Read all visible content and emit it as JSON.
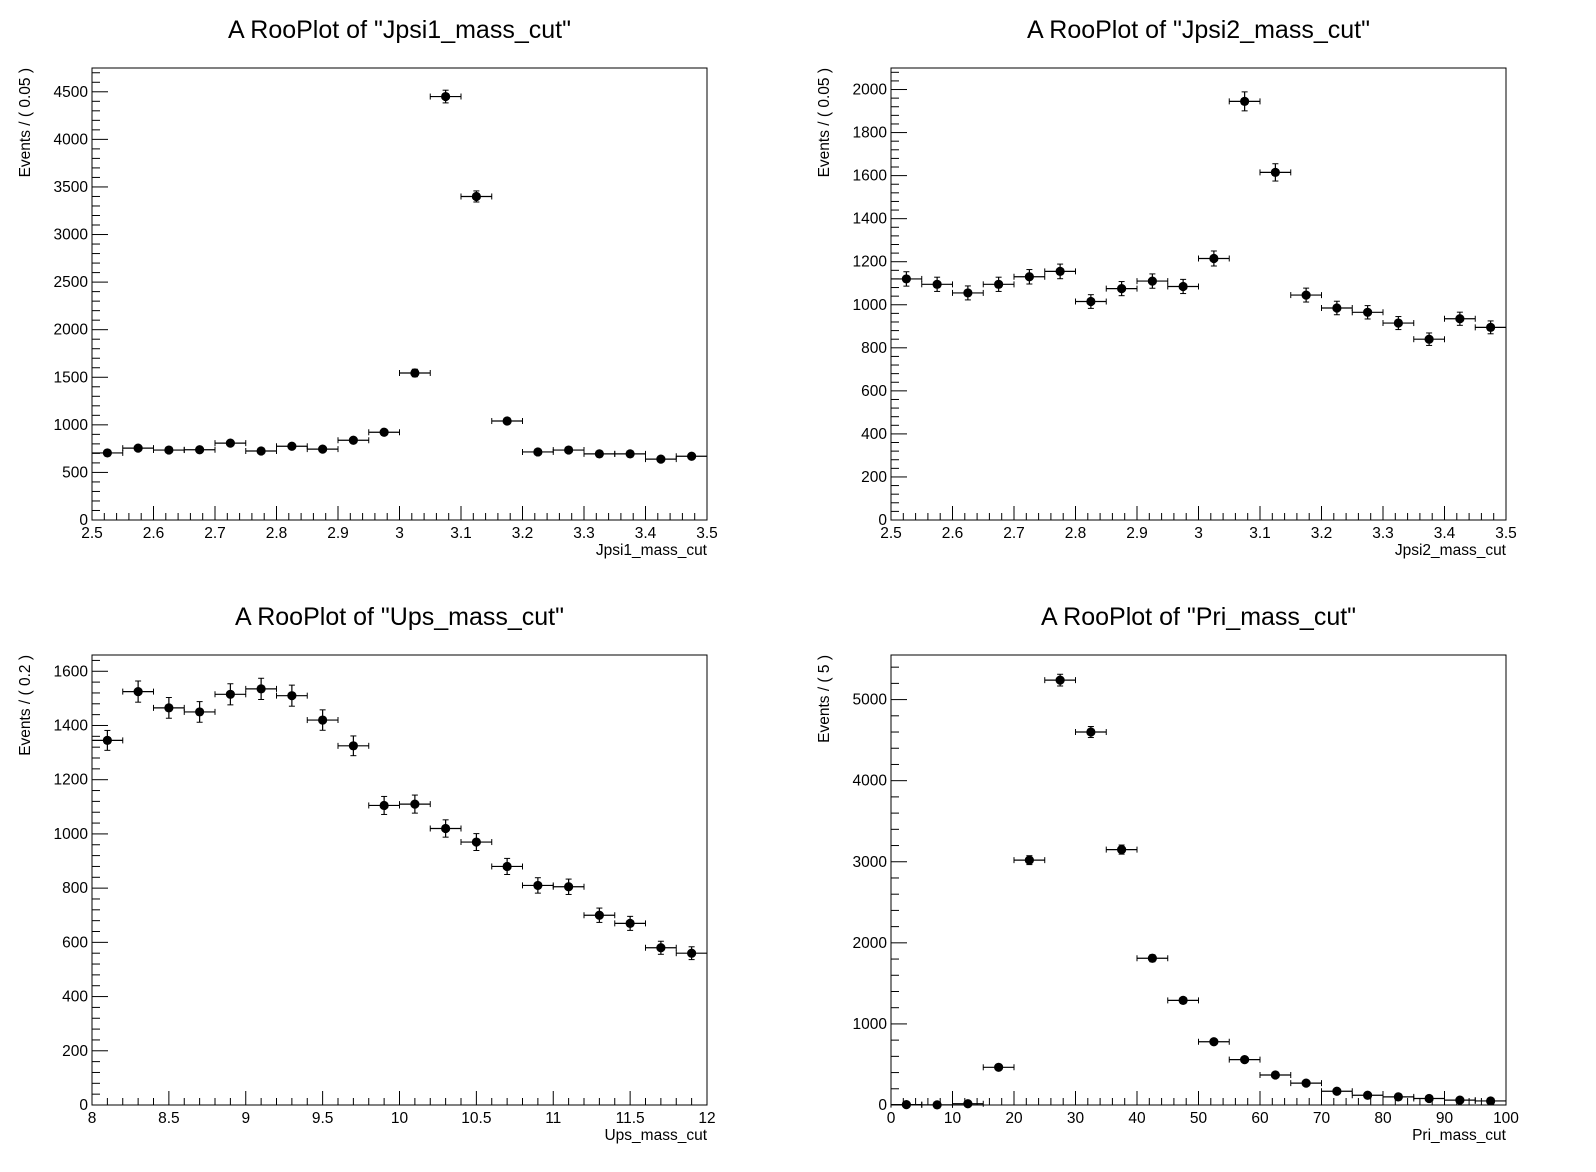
{
  "chart_data": [
    {
      "type": "scatter",
      "title": "A RooPlot of \"Jpsi1_mass_cut\"",
      "xlabel": "Jpsi1_mass_cut",
      "ylabel": "Events / ( 0.05 )",
      "xlim": [
        2.5,
        3.5
      ],
      "ylim": [
        0,
        4750
      ],
      "xticks": [
        2.5,
        2.6,
        2.7,
        2.8,
        2.9,
        3,
        3.1,
        3.2,
        3.3,
        3.4,
        3.5
      ],
      "xtick_labels": [
        "2.5",
        "2.6",
        "2.7",
        "2.8",
        "2.9",
        "3",
        "3.1",
        "3.2",
        "3.3",
        "3.4",
        "3.5"
      ],
      "yticks": [
        0,
        500,
        1000,
        1500,
        2000,
        2500,
        3000,
        3500,
        4000,
        4500
      ],
      "ytick_labels": [
        "0",
        "500",
        "1000",
        "1500",
        "2000",
        "2500",
        "3000",
        "3500",
        "4000",
        "4500"
      ],
      "bin_width": 0.05,
      "grid": false,
      "series": [
        {
          "x": [
            2.525,
            2.575,
            2.625,
            2.675,
            2.725,
            2.775,
            2.825,
            2.875,
            2.925,
            2.975,
            3.025,
            3.075,
            3.125,
            3.175,
            3.225,
            3.275,
            3.325,
            3.375,
            3.425,
            3.475
          ],
          "y": [
            705,
            755,
            735,
            738,
            808,
            725,
            775,
            745,
            838,
            922,
            1545,
            4450,
            3400,
            1040,
            715,
            735,
            695,
            695,
            640,
            670
          ]
        }
      ]
    },
    {
      "type": "scatter",
      "title": "A RooPlot of \"Jpsi2_mass_cut\"",
      "xlabel": "Jpsi2_mass_cut",
      "ylabel": "Events / ( 0.05 )",
      "xlim": [
        2.5,
        3.5
      ],
      "ylim": [
        0,
        2100
      ],
      "xticks": [
        2.5,
        2.6,
        2.7,
        2.8,
        2.9,
        3,
        3.1,
        3.2,
        3.3,
        3.4,
        3.5
      ],
      "xtick_labels": [
        "2.5",
        "2.6",
        "2.7",
        "2.8",
        "2.9",
        "3",
        "3.1",
        "3.2",
        "3.3",
        "3.4",
        "3.5"
      ],
      "yticks": [
        0,
        200,
        400,
        600,
        800,
        1000,
        1200,
        1400,
        1600,
        1800,
        2000
      ],
      "ytick_labels": [
        "0",
        "200",
        "400",
        "600",
        "800",
        "1000",
        "1200",
        "1400",
        "1600",
        "1800",
        "2000"
      ],
      "bin_width": 0.05,
      "grid": false,
      "series": [
        {
          "x": [
            2.525,
            2.575,
            2.625,
            2.675,
            2.725,
            2.775,
            2.825,
            2.875,
            2.925,
            2.975,
            3.025,
            3.075,
            3.125,
            3.175,
            3.225,
            3.275,
            3.325,
            3.375,
            3.425,
            3.475
          ],
          "y": [
            1120,
            1095,
            1055,
            1095,
            1130,
            1155,
            1015,
            1075,
            1110,
            1085,
            1215,
            1945,
            1615,
            1045,
            985,
            965,
            915,
            840,
            935,
            895
          ]
        }
      ]
    },
    {
      "type": "scatter",
      "title": "A RooPlot of \"Ups_mass_cut\"",
      "xlabel": "Ups_mass_cut",
      "ylabel": "Events / ( 0.2 )",
      "xlim": [
        8,
        12
      ],
      "ylim": [
        0,
        1660
      ],
      "xticks": [
        8,
        8.5,
        9,
        9.5,
        10,
        10.5,
        11,
        11.5,
        12
      ],
      "xtick_labels": [
        "8",
        "8.5",
        "9",
        "9.5",
        "10",
        "10.5",
        "11",
        "11.5",
        "12"
      ],
      "yticks": [
        0,
        200,
        400,
        600,
        800,
        1000,
        1200,
        1400,
        1600
      ],
      "ytick_labels": [
        "0",
        "200",
        "400",
        "600",
        "800",
        "1000",
        "1200",
        "1400",
        "1600"
      ],
      "bin_width": 0.2,
      "grid": false,
      "series": [
        {
          "x": [
            8.1,
            8.3,
            8.5,
            8.7,
            8.9,
            9.1,
            9.3,
            9.5,
            9.7,
            9.9,
            10.1,
            10.3,
            10.5,
            10.7,
            10.9,
            11.1,
            11.3,
            11.5,
            11.7,
            11.9
          ],
          "y": [
            1345,
            1525,
            1465,
            1450,
            1515,
            1535,
            1510,
            1420,
            1325,
            1105,
            1110,
            1020,
            970,
            880,
            810,
            805,
            700,
            670,
            580,
            560
          ]
        }
      ]
    },
    {
      "type": "scatter",
      "title": "A RooPlot of \"Pri_mass_cut\"",
      "xlabel": "Pri_mass_cut",
      "ylabel": "Events / ( 5 )",
      "xlim": [
        0,
        100
      ],
      "ylim": [
        0,
        5550
      ],
      "xticks": [
        0,
        10,
        20,
        30,
        40,
        50,
        60,
        70,
        80,
        90,
        100
      ],
      "xtick_labels": [
        "0",
        "10",
        "20",
        "30",
        "40",
        "50",
        "60",
        "70",
        "80",
        "90",
        "100"
      ],
      "yticks": [
        0,
        1000,
        2000,
        3000,
        4000,
        5000
      ],
      "ytick_labels": [
        "0",
        "1000",
        "2000",
        "3000",
        "4000",
        "5000"
      ],
      "bin_width": 5,
      "grid": false,
      "series": [
        {
          "x": [
            2.5,
            7.5,
            12.5,
            17.5,
            22.5,
            27.5,
            32.5,
            37.5,
            42.5,
            47.5,
            52.5,
            57.5,
            62.5,
            67.5,
            72.5,
            77.5,
            82.5,
            87.5,
            92.5,
            97.5
          ],
          "y": [
            5,
            2,
            15,
            465,
            3020,
            5240,
            4600,
            3150,
            1810,
            1290,
            780,
            560,
            370,
            270,
            170,
            120,
            100,
            80,
            60,
            50
          ]
        }
      ]
    }
  ]
}
